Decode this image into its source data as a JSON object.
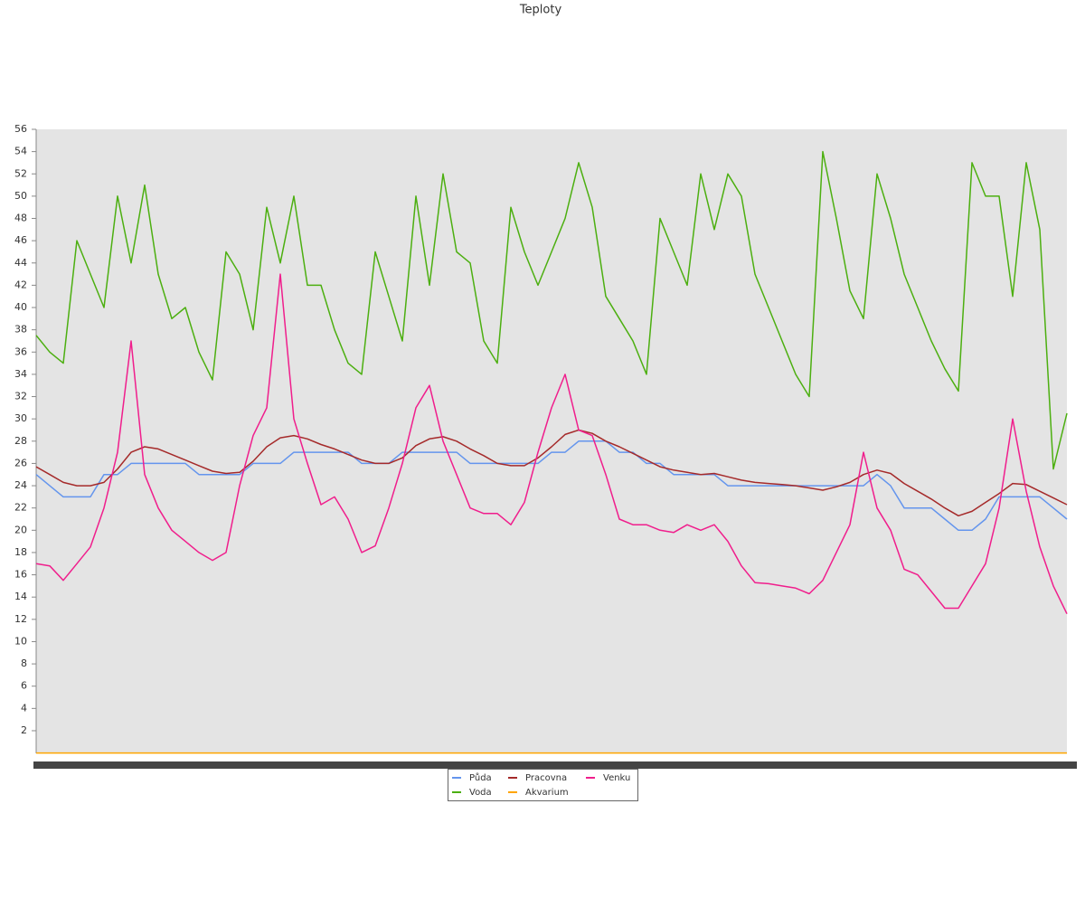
{
  "chart_data": {
    "type": "line",
    "title": "Teploty",
    "categories": [
      null,
      null,
      null,
      null,
      null,
      null,
      null,
      null,
      null,
      null,
      null,
      null,
      null,
      null,
      null,
      null,
      null,
      null,
      null,
      null,
      null,
      null,
      null,
      null,
      null,
      null,
      null,
      null,
      null,
      null,
      null,
      null,
      null,
      null,
      null,
      null,
      null,
      null,
      null,
      null,
      null,
      null,
      null,
      null,
      null,
      null,
      null,
      null,
      null,
      null,
      null,
      null,
      null,
      null,
      null,
      null,
      null,
      null,
      null,
      null,
      null,
      null,
      null,
      null,
      null,
      null,
      null,
      null,
      null,
      null,
      null,
      null,
      null,
      null,
      null,
      null,
      null
    ],
    "ylim": [
      0,
      56
    ],
    "yticks": [
      2,
      4,
      6,
      8,
      10,
      12,
      14,
      16,
      18,
      20,
      22,
      24,
      26,
      28,
      30,
      32,
      34,
      36,
      38,
      40,
      42,
      44,
      46,
      48,
      50,
      52,
      54,
      56
    ],
    "grid": false,
    "series": [
      {
        "name": "Půda",
        "color": "#6495ed",
        "values": [
          25,
          24,
          23,
          23,
          23,
          25,
          25,
          26,
          26,
          26,
          26,
          26,
          25,
          25,
          25,
          25,
          26,
          26,
          26,
          27,
          27,
          27,
          27,
          27,
          26,
          26,
          26,
          27,
          27,
          27,
          27,
          27,
          26,
          26,
          26,
          26,
          26,
          26,
          27,
          27,
          28,
          28,
          28,
          27,
          27,
          26,
          26,
          25,
          25,
          25,
          25,
          24,
          24,
          24,
          24,
          24,
          24,
          24,
          24,
          24,
          24,
          24,
          25,
          24,
          22,
          22,
          22,
          21,
          20,
          20,
          21,
          23,
          23,
          23,
          23,
          22,
          21
        ]
      },
      {
        "name": "Voda",
        "color": "#4caf10",
        "values": [
          37.5,
          36,
          35,
          46,
          43,
          40,
          50,
          44,
          51,
          43,
          39,
          40,
          36,
          33.5,
          45,
          43,
          38,
          49,
          44,
          50,
          42,
          42,
          38,
          35,
          34,
          45,
          41,
          37,
          50,
          42,
          52,
          45,
          44,
          37,
          35,
          49,
          45,
          42,
          45,
          48,
          53,
          49,
          41,
          39,
          37,
          34,
          48,
          45,
          42,
          52,
          47,
          52,
          50,
          43,
          40,
          37,
          34,
          32,
          54,
          48,
          41.5,
          39,
          52,
          48,
          43,
          40,
          37,
          34.5,
          32.5,
          53,
          50,
          50,
          41,
          53,
          47,
          25.5,
          30.5
        ]
      },
      {
        "name": "Pracovna",
        "color": "#a52a2a",
        "values": [
          25.7,
          25,
          24.3,
          24,
          24,
          24.3,
          25.5,
          27,
          27.5,
          27.3,
          26.8,
          26.3,
          25.8,
          25.3,
          25.1,
          25.2,
          26.2,
          27.5,
          28.3,
          28.5,
          28.2,
          27.7,
          27.3,
          26.8,
          26.3,
          26,
          26,
          26.5,
          27.6,
          28.2,
          28.4,
          28,
          27.3,
          26.7,
          26,
          25.8,
          25.8,
          26.5,
          27.5,
          28.6,
          29,
          28.7,
          28,
          27.5,
          26.9,
          26.3,
          25.7,
          25.4,
          25.2,
          25,
          25.1,
          24.8,
          24.5,
          24.3,
          24.2,
          24.1,
          24,
          23.8,
          23.6,
          23.9,
          24.3,
          25,
          25.4,
          25.1,
          24.2,
          23.5,
          22.8,
          22,
          21.3,
          21.7,
          22.5,
          23.3,
          24.2,
          24.1,
          23.5,
          22.9,
          22.3
        ]
      },
      {
        "name": "Akvarium",
        "color": "#ffa500",
        "values": [
          0,
          0,
          0,
          0,
          0,
          0,
          0,
          0,
          0,
          0,
          0,
          0,
          0,
          0,
          0,
          0,
          0,
          0,
          0,
          0,
          0,
          0,
          0,
          0,
          0,
          0,
          0,
          0,
          0,
          0,
          0,
          0,
          0,
          0,
          0,
          0,
          0,
          0,
          0,
          0,
          0,
          0,
          0,
          0,
          0,
          0,
          0,
          0,
          0,
          0,
          0,
          0,
          0,
          0,
          0,
          0,
          0,
          0,
          0,
          0,
          0,
          0,
          0,
          0,
          0,
          0,
          0,
          0,
          0,
          0,
          0,
          0,
          0,
          0,
          0,
          0,
          0
        ]
      },
      {
        "name": "Venku",
        "color": "#f01e8c",
        "values": [
          17,
          16.8,
          15.5,
          17,
          18.5,
          22,
          27,
          37,
          25,
          22,
          20,
          19,
          18,
          17.3,
          18,
          24,
          28.5,
          31,
          43,
          30,
          26,
          22.3,
          23,
          21,
          18,
          18.6,
          22,
          26,
          31,
          33,
          28,
          25,
          22,
          21.5,
          21.5,
          20.5,
          22.5,
          27,
          31,
          34,
          29,
          28.5,
          25,
          21,
          20.5,
          20.5,
          20,
          19.8,
          20.5,
          20,
          20.5,
          19,
          16.8,
          15.3,
          15.2,
          15,
          14.8,
          14.3,
          15.5,
          18,
          20.5,
          27,
          22,
          20,
          16.5,
          16,
          14.5,
          13,
          13,
          15,
          17,
          22,
          30,
          23.5,
          18.5,
          15,
          12.5
        ]
      }
    ]
  }
}
